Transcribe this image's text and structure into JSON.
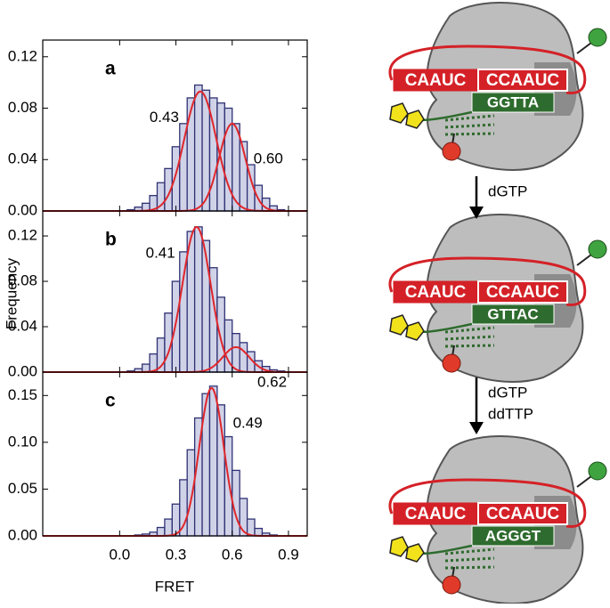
{
  "chart_data": [
    {
      "type": "histogram",
      "panel_label": "a",
      "bins": [
        0.0,
        0.04,
        0.08,
        0.12,
        0.16,
        0.2,
        0.24,
        0.28,
        0.32,
        0.36,
        0.4,
        0.44,
        0.48,
        0.52,
        0.56,
        0.6,
        0.64,
        0.68,
        0.72,
        0.76,
        0.8,
        0.84,
        0.88
      ],
      "values": [
        0.0,
        0.001,
        0.003,
        0.006,
        0.012,
        0.022,
        0.033,
        0.05,
        0.068,
        0.088,
        0.098,
        0.094,
        0.088,
        0.084,
        0.08,
        0.068,
        0.054,
        0.036,
        0.02,
        0.01,
        0.004,
        0.001
      ],
      "color": "#d0d2e8",
      "peaks": [
        {
          "value": 0.43,
          "label": "0.43",
          "amplitude": 0.093,
          "sigma": 0.085
        },
        {
          "value": 0.6,
          "label": "0.60",
          "amplitude": 0.068,
          "sigma": 0.07
        }
      ],
      "fit_color": "#e0262b",
      "xlim": [
        -0.41,
        1.0
      ],
      "ylim": [
        0,
        0.133
      ],
      "yticks": [
        {
          "value": 0,
          "label": "0.00"
        },
        {
          "value": 0.04,
          "label": "0.04"
        },
        {
          "value": 0.08,
          "label": "0.08"
        },
        {
          "value": 0.12,
          "label": "0.12"
        }
      ]
    },
    {
      "type": "histogram",
      "panel_label": "b",
      "ylabel": "Frequency",
      "bins": [
        0.0,
        0.04,
        0.08,
        0.12,
        0.16,
        0.2,
        0.24,
        0.28,
        0.32,
        0.36,
        0.4,
        0.44,
        0.48,
        0.52,
        0.56,
        0.6,
        0.64,
        0.68,
        0.72,
        0.76,
        0.8,
        0.84,
        0.88
      ],
      "values": [
        0.0,
        0.001,
        0.003,
        0.007,
        0.016,
        0.03,
        0.052,
        0.08,
        0.106,
        0.124,
        0.128,
        0.116,
        0.092,
        0.066,
        0.046,
        0.034,
        0.026,
        0.018,
        0.01,
        0.005,
        0.002,
        0.001
      ],
      "color": "#d0d2e8",
      "peaks": [
        {
          "value": 0.41,
          "label": "0.41",
          "amplitude": 0.128,
          "sigma": 0.075
        },
        {
          "value": 0.62,
          "label": "0.62",
          "amplitude": 0.022,
          "sigma": 0.07
        }
      ],
      "fit_color": "#e0262b",
      "xlim": [
        -0.41,
        1.0
      ],
      "ylim": [
        0,
        0.142
      ],
      "yticks": [
        {
          "value": 0,
          "label": "0.00"
        },
        {
          "value": 0.04,
          "label": "0.04"
        },
        {
          "value": 0.08,
          "label": "0.08"
        },
        {
          "value": 0.12,
          "label": "0.12"
        }
      ]
    },
    {
      "type": "histogram",
      "panel_label": "c",
      "xlabel": "FRET",
      "bins": [
        0.0,
        0.04,
        0.08,
        0.12,
        0.16,
        0.2,
        0.24,
        0.28,
        0.32,
        0.36,
        0.4,
        0.44,
        0.48,
        0.52,
        0.56,
        0.6,
        0.64,
        0.68,
        0.72,
        0.76,
        0.8,
        0.84,
        0.88
      ],
      "values": [
        0.0,
        0.0,
        0.001,
        0.002,
        0.004,
        0.009,
        0.018,
        0.034,
        0.06,
        0.092,
        0.126,
        0.152,
        0.16,
        0.14,
        0.106,
        0.07,
        0.04,
        0.018,
        0.008,
        0.003,
        0.001,
        0.0
      ],
      "color": "#d0d2e8",
      "peaks": [
        {
          "value": 0.49,
          "label": "0.49",
          "amplitude": 0.158,
          "sigma": 0.065
        }
      ],
      "fit_color": "#e0262b",
      "xlim": [
        -0.41,
        1.0
      ],
      "ylim": [
        0,
        0.175
      ],
      "xticks": [
        {
          "value": 0,
          "label": "0.0"
        },
        {
          "value": 0.3,
          "label": "0.3"
        },
        {
          "value": 0.6,
          "label": "0.6"
        },
        {
          "value": 0.9,
          "label": "0.9"
        }
      ],
      "yticks": [
        {
          "value": 0,
          "label": "0.00"
        },
        {
          "value": 0.05,
          "label": "0.05"
        },
        {
          "value": 0.1,
          "label": "0.10"
        },
        {
          "value": 0.15,
          "label": "0.15"
        }
      ]
    }
  ],
  "diagram": {
    "stages": [
      {
        "rna": [
          "CAAUC",
          "CCAAUC"
        ],
        "dna": "GGTTA"
      },
      {
        "rna": [
          "CAAUC",
          "CCAAUC"
        ],
        "dna": "GTTAC"
      },
      {
        "rna": [
          "CAAUC",
          "CCAAUC"
        ],
        "dna": "AGGGT"
      }
    ],
    "steps": [
      [
        "dGTP"
      ],
      [
        "dGTP",
        "ddTTP"
      ]
    ]
  }
}
